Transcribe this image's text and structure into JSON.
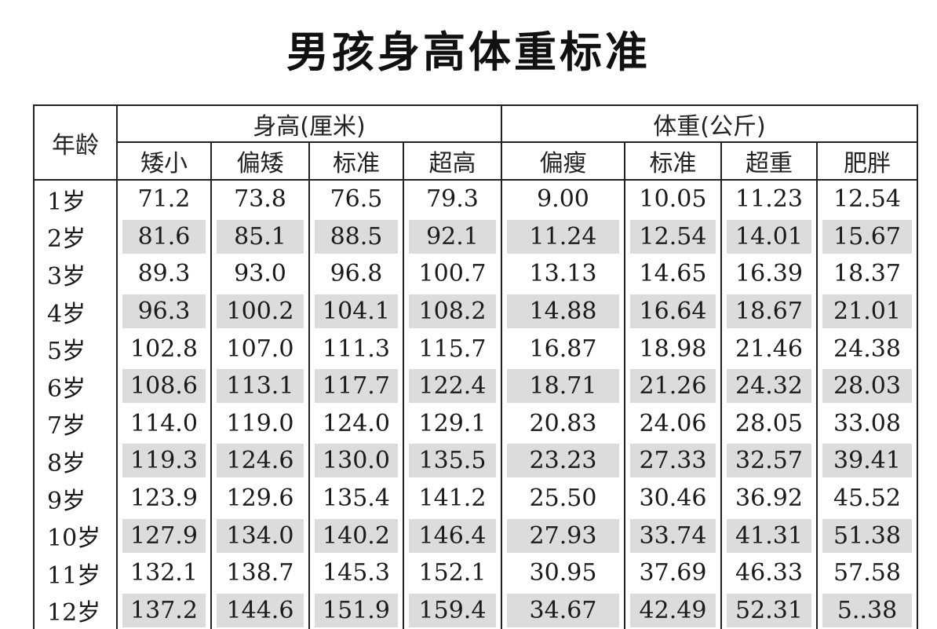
{
  "title": "男孩身高体重标准",
  "headers": {
    "age": "年龄",
    "height_group": "身高(厘米)",
    "weight_group": "体重(公斤)",
    "height_cols": [
      "矮小",
      "偏矮",
      "标准",
      "超高"
    ],
    "weight_cols": [
      "偏瘦",
      "标准",
      "超重",
      "肥胖"
    ]
  },
  "rows": [
    [
      "1岁",
      "71.2",
      "73.8",
      "76.5",
      "79.3",
      "9.00",
      "10.05",
      "11.23",
      "12.54"
    ],
    [
      "2岁",
      "81.6",
      "85.1",
      "88.5",
      "92.1",
      "11.24",
      "12.54",
      "14.01",
      "15.67"
    ],
    [
      "3岁",
      "89.3",
      "93.0",
      "96.8",
      "100.7",
      "13.13",
      "14.65",
      "16.39",
      "18.37"
    ],
    [
      "4岁",
      "96.3",
      "100.2",
      "104.1",
      "108.2",
      "14.88",
      "16.64",
      "18.67",
      "21.01"
    ],
    [
      "5岁",
      "102.8",
      "107.0",
      "111.3",
      "115.7",
      "16.87",
      "18.98",
      "21.46",
      "24.38"
    ],
    [
      "6岁",
      "108.6",
      "113.1",
      "117.7",
      "122.4",
      "18.71",
      "21.26",
      "24.32",
      "28.03"
    ],
    [
      "7岁",
      "114.0",
      "119.0",
      "124.0",
      "129.1",
      "20.83",
      "24.06",
      "28.05",
      "33.08"
    ],
    [
      "8岁",
      "119.3",
      "124.6",
      "130.0",
      "135.5",
      "23.23",
      "27.33",
      "32.57",
      "39.41"
    ],
    [
      "9岁",
      "123.9",
      "129.6",
      "135.4",
      "141.2",
      "25.50",
      "30.46",
      "36.92",
      "45.52"
    ],
    [
      "10岁",
      "127.9",
      "134.0",
      "140.2",
      "146.4",
      "27.93",
      "33.74",
      "41.31",
      "51.38"
    ],
    [
      "11岁",
      "132.1",
      "138.7",
      "145.3",
      "152.1",
      "30.95",
      "37.69",
      "46.33",
      "57.58"
    ],
    [
      "12岁",
      "137.2",
      "144.6",
      "151.9",
      "159.4",
      "34.67",
      "42.49",
      "52.31",
      "5..38"
    ]
  ]
}
